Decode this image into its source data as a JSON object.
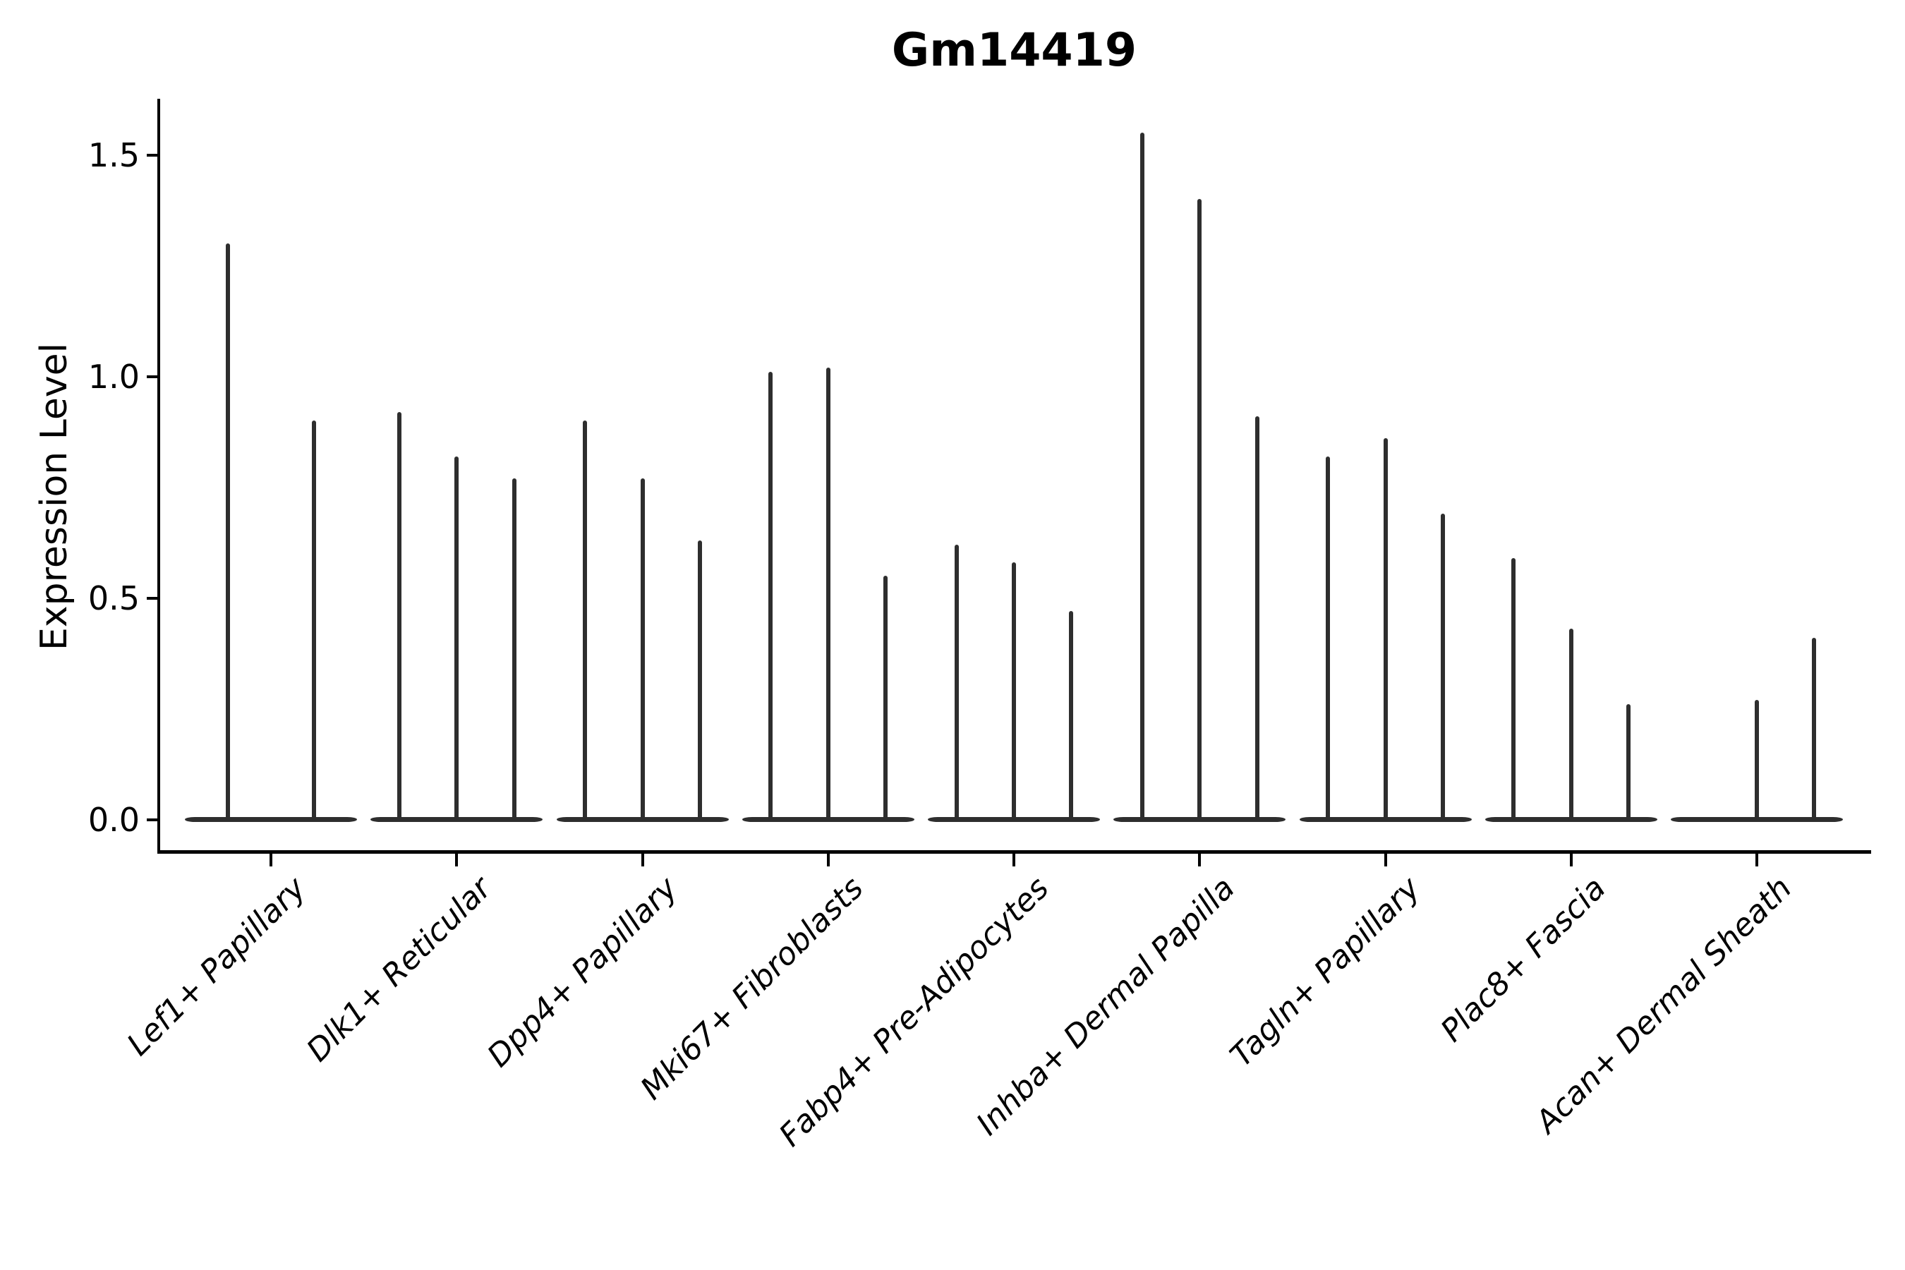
{
  "title": "Gm14419",
  "chart_data": {
    "type": "violin",
    "title": "Gm14419",
    "xlabel": "",
    "ylabel": "Expression Level",
    "ylim": [
      0,
      1.63
    ],
    "yticks": [
      0,
      0.5,
      1.0,
      1.5
    ],
    "ytick_labels": [
      "0.0",
      "0.5",
      "1.0",
      "1.5"
    ],
    "grid": false,
    "legend": "none",
    "description": "Sparse-expression violin plot: each category shows 2-3 very thin violins that are flat wide bases at 0 with a narrow spike rising to the max expression value",
    "categories": [
      "Lef1+ Papillary",
      "Dlk1+ Reticular",
      "Dpp4+ Papillary",
      "Mki67+ Fibroblasts",
      "Fabp4+ Pre-Adipocytes",
      "Inhba+ Dermal Papilla",
      "Tagln+ Papillary",
      "Plac8+ Fascia",
      "Acan+ Dermal Sheath"
    ],
    "baseline_value": 0.0,
    "groups": [
      {
        "category": "Lef1+ Papillary",
        "slots": 2,
        "violins": [
          {
            "slot": 0,
            "max": 1.3
          },
          {
            "slot": 1,
            "max": 0.9
          }
        ]
      },
      {
        "category": "Dlk1+ Reticular",
        "slots": 3,
        "violins": [
          {
            "slot": 0,
            "max": 0.92
          },
          {
            "slot": 1,
            "max": 0.82
          },
          {
            "slot": 2,
            "max": 0.77
          }
        ]
      },
      {
        "category": "Dpp4+ Papillary",
        "slots": 3,
        "violins": [
          {
            "slot": 0,
            "max": 0.9
          },
          {
            "slot": 1,
            "max": 0.77
          },
          {
            "slot": 2,
            "max": 0.63
          }
        ]
      },
      {
        "category": "Mki67+ Fibroblasts",
        "slots": 3,
        "violins": [
          {
            "slot": 0,
            "max": 1.01
          },
          {
            "slot": 1,
            "max": 1.02
          },
          {
            "slot": 2,
            "max": 0.55
          }
        ]
      },
      {
        "category": "Fabp4+ Pre-Adipocytes",
        "slots": 3,
        "violins": [
          {
            "slot": 0,
            "max": 0.62
          },
          {
            "slot": 1,
            "max": 0.58
          },
          {
            "slot": 2,
            "max": 0.47
          }
        ]
      },
      {
        "category": "Inhba+ Dermal Papilla",
        "slots": 3,
        "violins": [
          {
            "slot": 0,
            "max": 1.55
          },
          {
            "slot": 1,
            "max": 1.4
          },
          {
            "slot": 2,
            "max": 0.91
          }
        ]
      },
      {
        "category": "Tagln+ Papillary",
        "slots": 3,
        "violins": [
          {
            "slot": 0,
            "max": 0.82
          },
          {
            "slot": 1,
            "max": 0.86
          },
          {
            "slot": 2,
            "max": 0.69
          }
        ]
      },
      {
        "category": "Plac8+ Fascia",
        "slots": 3,
        "violins": [
          {
            "slot": 0,
            "max": 0.59
          },
          {
            "slot": 1,
            "max": 0.43
          },
          {
            "slot": 2,
            "max": 0.26
          }
        ]
      },
      {
        "category": "Acan+ Dermal Sheath",
        "slots": 3,
        "violins": [
          {
            "slot": 1,
            "max": 0.27
          },
          {
            "slot": 2,
            "max": 0.41
          }
        ]
      }
    ]
  },
  "colors": {
    "violin": "#2e2e2e",
    "axis": "#000000",
    "text": "#000000",
    "background": "#ffffff"
  }
}
